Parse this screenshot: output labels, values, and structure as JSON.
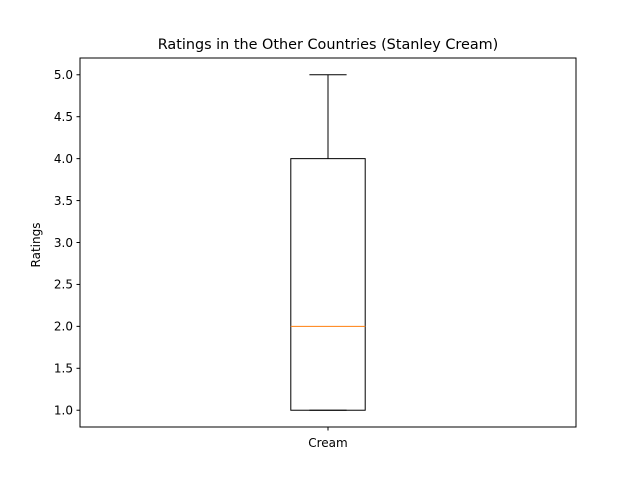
{
  "chart_data": {
    "type": "box",
    "title": "Ratings in the Other Countries (Stanley Cream)",
    "xlabel": "",
    "ylabel": "Ratings",
    "categories": [
      "Cream"
    ],
    "boxes": [
      {
        "category": "Cream",
        "whisker_low": 1.0,
        "q1": 1.0,
        "median": 2.0,
        "q3": 4.0,
        "whisker_high": 5.0
      }
    ],
    "ylim": [
      0.8,
      5.2
    ],
    "yticks": [
      "1.0",
      "1.5",
      "2.0",
      "2.5",
      "3.0",
      "3.5",
      "4.0",
      "4.5",
      "5.0"
    ],
    "grid": false,
    "colors": {
      "box": "#000000",
      "median": "#ff7f0e",
      "axes": "#000000"
    }
  }
}
